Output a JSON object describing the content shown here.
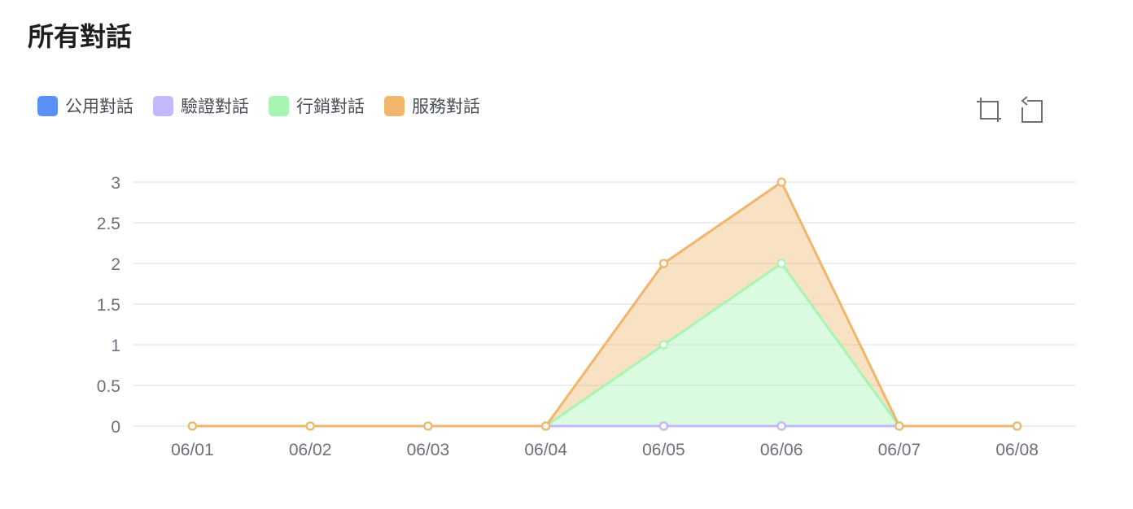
{
  "header": {
    "title": "所有對話"
  },
  "legend": [
    {
      "label": "公用對話",
      "color": "#5a8ff6"
    },
    {
      "label": "驗證對話",
      "color": "#c4b8fb"
    },
    {
      "label": "行銷對話",
      "color": "#a6f5b3"
    },
    {
      "label": "服務對話",
      "color": "#f1b56c"
    }
  ],
  "toolbox": {
    "zoom_icon": "data-zoom-icon",
    "reset_icon": "zoom-reset-icon"
  },
  "chart_data": {
    "type": "area",
    "stacked": true,
    "categories": [
      "06/01",
      "06/02",
      "06/03",
      "06/04",
      "06/05",
      "06/06",
      "06/07",
      "06/08"
    ],
    "series": [
      {
        "name": "公用對話",
        "values": [
          0,
          0,
          0,
          0,
          0,
          0,
          0,
          0
        ],
        "color": "#5a8ff6"
      },
      {
        "name": "驗證對話",
        "values": [
          0,
          0,
          0,
          0,
          0,
          0,
          0,
          0
        ],
        "color": "#c4b8fb"
      },
      {
        "name": "行銷對話",
        "values": [
          0,
          0,
          0,
          0,
          1,
          2,
          0,
          0
        ],
        "color": "#a6f5b3"
      },
      {
        "name": "服務對話",
        "values": [
          0,
          0,
          0,
          0,
          1,
          1,
          0,
          0
        ],
        "color": "#f1b56c"
      }
    ],
    "ylim": [
      0,
      3
    ],
    "yticks": [
      "0",
      "0.5",
      "1",
      "1.5",
      "2",
      "2.5",
      "3"
    ],
    "grid": true,
    "legend_position": "top-left"
  }
}
